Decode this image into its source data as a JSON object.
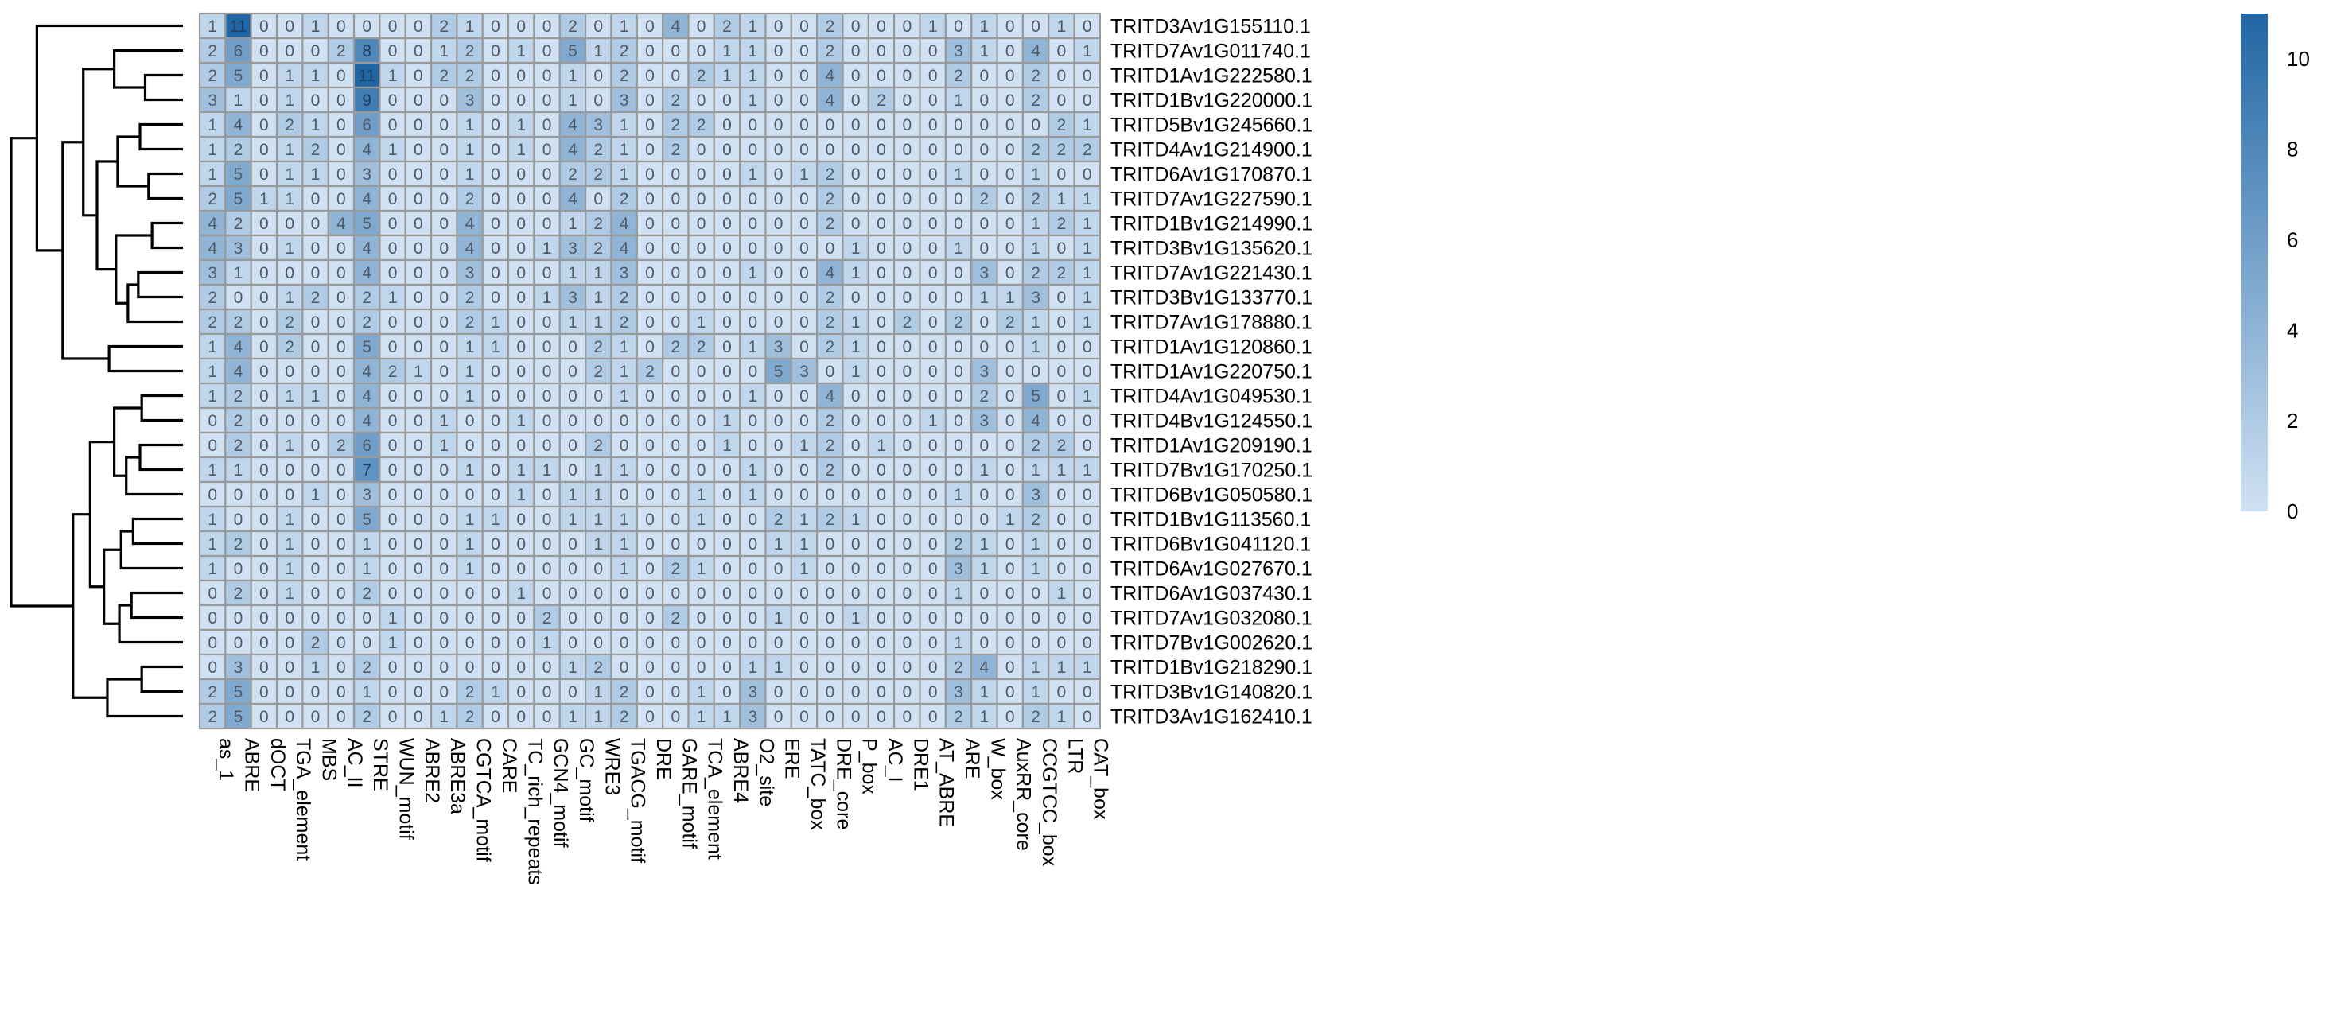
{
  "chart_data": {
    "type": "heatmap",
    "title": "",
    "xlabel": "",
    "ylabel": "",
    "columns": [
      "as_1",
      "ABRE",
      "dOCT",
      "TGA_element",
      "MBS",
      "AC_II",
      "STRE",
      "WUN_motif",
      "ABRE2",
      "ABRE3a",
      "CGTCA_motif",
      "CARE",
      "TC_rich_repeats",
      "GCN4_motif",
      "GC_motif",
      "WRE3",
      "TGACG_motif",
      "DRE",
      "GARE_motif",
      "TCA_element",
      "ABRE4",
      "O2_site",
      "ERE",
      "TATC_box",
      "DRE_core",
      "P_box",
      "AC_I",
      "DRE1",
      "AT_ABRE",
      "ARE",
      "W_box",
      "AuxRR_core",
      "CCGTCC_box",
      "LTR",
      "CAT_box"
    ],
    "rows": [
      "TRITD3Av1G155110.1",
      "TRITD7Av1G011740.1",
      "TRITD1Av1G222580.1",
      "TRITD1Bv1G220000.1",
      "TRITD5Bv1G245660.1",
      "TRITD4Av1G214900.1",
      "TRITD6Av1G170870.1",
      "TRITD7Av1G227590.1",
      "TRITD1Bv1G214990.1",
      "TRITD3Bv1G135620.1",
      "TRITD7Av1G221430.1",
      "TRITD3Bv1G133770.1",
      "TRITD7Av1G178880.1",
      "TRITD1Av1G120860.1",
      "TRITD1Av1G220750.1",
      "TRITD4Av1G049530.1",
      "TRITD4Bv1G124550.1",
      "TRITD1Av1G209190.1",
      "TRITD7Bv1G170250.1",
      "TRITD6Bv1G050580.1",
      "TRITD1Bv1G113560.1",
      "TRITD6Bv1G041120.1",
      "TRITD6Av1G027670.1",
      "TRITD6Av1G037430.1",
      "TRITD7Av1G032080.1",
      "TRITD7Bv1G002620.1",
      "TRITD1Bv1G218290.1",
      "TRITD3Bv1G140820.1",
      "TRITD3Av1G162410.1"
    ],
    "values": [
      [
        1,
        11,
        0,
        0,
        1,
        0,
        0,
        0,
        0,
        2,
        1,
        0,
        0,
        0,
        2,
        0,
        1,
        0,
        4,
        0,
        2,
        1,
        0,
        0,
        2,
        0,
        0,
        0,
        1,
        0,
        1,
        0,
        0,
        1,
        0
      ],
      [
        2,
        6,
        0,
        0,
        0,
        2,
        8,
        0,
        0,
        1,
        2,
        0,
        1,
        0,
        5,
        1,
        2,
        0,
        0,
        0,
        1,
        1,
        0,
        0,
        2,
        0,
        0,
        0,
        0,
        3,
        1,
        0,
        4,
        0,
        1
      ],
      [
        2,
        5,
        0,
        1,
        1,
        0,
        11,
        1,
        0,
        2,
        2,
        0,
        0,
        0,
        1,
        0,
        2,
        0,
        0,
        2,
        1,
        1,
        0,
        0,
        4,
        0,
        0,
        0,
        0,
        2,
        0,
        0,
        2,
        0,
        0
      ],
      [
        3,
        1,
        0,
        1,
        0,
        0,
        9,
        0,
        0,
        0,
        3,
        0,
        0,
        0,
        1,
        0,
        3,
        0,
        2,
        0,
        0,
        1,
        0,
        0,
        4,
        0,
        2,
        0,
        0,
        1,
        0,
        0,
        2,
        0,
        0
      ],
      [
        1,
        4,
        0,
        2,
        1,
        0,
        6,
        0,
        0,
        0,
        1,
        0,
        1,
        0,
        4,
        3,
        1,
        0,
        2,
        2,
        0,
        0,
        0,
        0,
        0,
        0,
        0,
        0,
        0,
        0,
        0,
        0,
        0,
        2,
        1
      ],
      [
        1,
        2,
        0,
        1,
        2,
        0,
        4,
        1,
        0,
        0,
        1,
        0,
        1,
        0,
        4,
        2,
        1,
        0,
        2,
        0,
        0,
        0,
        0,
        0,
        0,
        0,
        0,
        0,
        0,
        0,
        0,
        0,
        2,
        2,
        2
      ],
      [
        1,
        5,
        0,
        1,
        1,
        0,
        3,
        0,
        0,
        0,
        1,
        0,
        0,
        0,
        2,
        2,
        1,
        0,
        0,
        0,
        0,
        1,
        0,
        1,
        2,
        0,
        0,
        0,
        0,
        1,
        0,
        0,
        1,
        0,
        0
      ],
      [
        2,
        5,
        1,
        1,
        0,
        0,
        4,
        0,
        0,
        0,
        2,
        0,
        0,
        0,
        4,
        0,
        2,
        0,
        0,
        0,
        0,
        0,
        0,
        0,
        2,
        0,
        0,
        0,
        0,
        0,
        2,
        0,
        2,
        1,
        1
      ],
      [
        4,
        2,
        0,
        0,
        0,
        4,
        5,
        0,
        0,
        0,
        4,
        0,
        0,
        0,
        1,
        2,
        4,
        0,
        0,
        0,
        0,
        0,
        0,
        0,
        2,
        0,
        0,
        0,
        0,
        0,
        0,
        0,
        1,
        2,
        1
      ],
      [
        4,
        3,
        0,
        1,
        0,
        0,
        4,
        0,
        0,
        0,
        4,
        0,
        0,
        1,
        3,
        2,
        4,
        0,
        0,
        0,
        0,
        0,
        0,
        0,
        0,
        1,
        0,
        0,
        0,
        1,
        0,
        0,
        1,
        0,
        1
      ],
      [
        3,
        1,
        0,
        0,
        0,
        0,
        4,
        0,
        0,
        0,
        3,
        0,
        0,
        0,
        1,
        1,
        3,
        0,
        0,
        0,
        0,
        1,
        0,
        0,
        4,
        1,
        0,
        0,
        0,
        0,
        3,
        0,
        2,
        2,
        1
      ],
      [
        2,
        0,
        0,
        1,
        2,
        0,
        2,
        1,
        0,
        0,
        2,
        0,
        0,
        1,
        3,
        1,
        2,
        0,
        0,
        0,
        0,
        0,
        0,
        0,
        2,
        0,
        0,
        0,
        0,
        0,
        1,
        1,
        3,
        0,
        1
      ],
      [
        2,
        2,
        0,
        2,
        0,
        0,
        2,
        0,
        0,
        0,
        2,
        1,
        0,
        0,
        1,
        1,
        2,
        0,
        0,
        1,
        0,
        0,
        0,
        0,
        2,
        1,
        0,
        2,
        0,
        2,
        0,
        2,
        1,
        0,
        1
      ],
      [
        1,
        4,
        0,
        2,
        0,
        0,
        5,
        0,
        0,
        0,
        1,
        1,
        0,
        0,
        0,
        2,
        1,
        0,
        2,
        2,
        0,
        1,
        3,
        0,
        2,
        1,
        0,
        0,
        0,
        0,
        0,
        0,
        1,
        0,
        0
      ],
      [
        1,
        4,
        0,
        0,
        0,
        0,
        4,
        2,
        1,
        0,
        1,
        0,
        0,
        0,
        0,
        2,
        1,
        2,
        0,
        0,
        0,
        0,
        5,
        3,
        0,
        1,
        0,
        0,
        0,
        0,
        3,
        0,
        0,
        0,
        0
      ],
      [
        1,
        2,
        0,
        1,
        1,
        0,
        4,
        0,
        0,
        0,
        1,
        0,
        0,
        0,
        0,
        0,
        1,
        0,
        0,
        0,
        0,
        1,
        0,
        0,
        4,
        0,
        0,
        0,
        0,
        0,
        2,
        0,
        5,
        0,
        1
      ],
      [
        0,
        2,
        0,
        0,
        0,
        0,
        4,
        0,
        0,
        1,
        0,
        0,
        1,
        0,
        0,
        0,
        0,
        0,
        0,
        0,
        1,
        0,
        0,
        0,
        2,
        0,
        0,
        0,
        1,
        0,
        3,
        0,
        4,
        0,
        0
      ],
      [
        0,
        2,
        0,
        1,
        0,
        2,
        6,
        0,
        0,
        1,
        0,
        0,
        0,
        0,
        0,
        2,
        0,
        0,
        0,
        0,
        1,
        0,
        0,
        1,
        2,
        0,
        1,
        0,
        0,
        0,
        0,
        0,
        2,
        2,
        0
      ],
      [
        1,
        1,
        0,
        0,
        0,
        0,
        7,
        0,
        0,
        0,
        1,
        0,
        1,
        1,
        0,
        1,
        1,
        0,
        0,
        0,
        0,
        1,
        0,
        0,
        2,
        0,
        0,
        0,
        0,
        0,
        1,
        0,
        1,
        1,
        1
      ],
      [
        0,
        0,
        0,
        0,
        1,
        0,
        3,
        0,
        0,
        0,
        0,
        0,
        1,
        0,
        1,
        1,
        0,
        0,
        0,
        1,
        0,
        1,
        0,
        0,
        0,
        0,
        0,
        0,
        0,
        1,
        0,
        0,
        3,
        0,
        0
      ],
      [
        1,
        0,
        0,
        1,
        0,
        0,
        5,
        0,
        0,
        0,
        1,
        1,
        0,
        0,
        1,
        1,
        1,
        0,
        0,
        1,
        0,
        0,
        2,
        1,
        2,
        1,
        0,
        0,
        0,
        0,
        0,
        1,
        2,
        0,
        0
      ],
      [
        1,
        2,
        0,
        1,
        0,
        0,
        1,
        0,
        0,
        0,
        1,
        0,
        0,
        0,
        0,
        1,
        1,
        0,
        0,
        0,
        0,
        0,
        1,
        1,
        0,
        0,
        0,
        0,
        0,
        2,
        1,
        0,
        1,
        0,
        0
      ],
      [
        1,
        0,
        0,
        1,
        0,
        0,
        1,
        0,
        0,
        0,
        1,
        0,
        0,
        0,
        0,
        0,
        1,
        0,
        2,
        1,
        0,
        0,
        0,
        1,
        0,
        0,
        0,
        0,
        0,
        3,
        1,
        0,
        1,
        0,
        0
      ],
      [
        0,
        2,
        0,
        1,
        0,
        0,
        2,
        0,
        0,
        0,
        0,
        0,
        1,
        0,
        0,
        0,
        0,
        0,
        0,
        0,
        0,
        0,
        0,
        0,
        0,
        0,
        0,
        0,
        0,
        1,
        0,
        0,
        0,
        1,
        0
      ],
      [
        0,
        0,
        0,
        0,
        0,
        0,
        0,
        1,
        0,
        0,
        0,
        0,
        0,
        2,
        0,
        0,
        0,
        0,
        2,
        0,
        0,
        0,
        1,
        0,
        0,
        1,
        0,
        0,
        0,
        0,
        0,
        0,
        0,
        0,
        0
      ],
      [
        0,
        0,
        0,
        0,
        2,
        0,
        0,
        1,
        0,
        0,
        0,
        0,
        0,
        1,
        0,
        0,
        0,
        0,
        0,
        0,
        0,
        0,
        0,
        0,
        0,
        0,
        0,
        0,
        0,
        1,
        0,
        0,
        0,
        0,
        0
      ],
      [
        0,
        3,
        0,
        0,
        1,
        0,
        2,
        0,
        0,
        0,
        0,
        0,
        0,
        0,
        1,
        2,
        0,
        0,
        0,
        0,
        0,
        1,
        1,
        0,
        0,
        0,
        0,
        0,
        0,
        2,
        4,
        0,
        1,
        1,
        1
      ],
      [
        2,
        5,
        0,
        0,
        0,
        0,
        1,
        0,
        0,
        0,
        2,
        1,
        0,
        0,
        0,
        1,
        2,
        0,
        0,
        1,
        0,
        3,
        0,
        0,
        0,
        0,
        0,
        0,
        0,
        3,
        1,
        0,
        1,
        0,
        0
      ],
      [
        2,
        5,
        0,
        0,
        0,
        0,
        2,
        0,
        0,
        1,
        2,
        0,
        0,
        0,
        1,
        1,
        2,
        0,
        0,
        1,
        1,
        3,
        0,
        0,
        0,
        0,
        0,
        0,
        0,
        2,
        1,
        0,
        2,
        1,
        0
      ]
    ],
    "colorscale": {
      "min": 0,
      "max": 11,
      "low_color": "#cfe1f3",
      "high_color": "#2166a4",
      "ticks": [
        0,
        2,
        4,
        6,
        8,
        10
      ]
    },
    "cell_border_color": "#999999",
    "dendrogram": "rows-left"
  }
}
